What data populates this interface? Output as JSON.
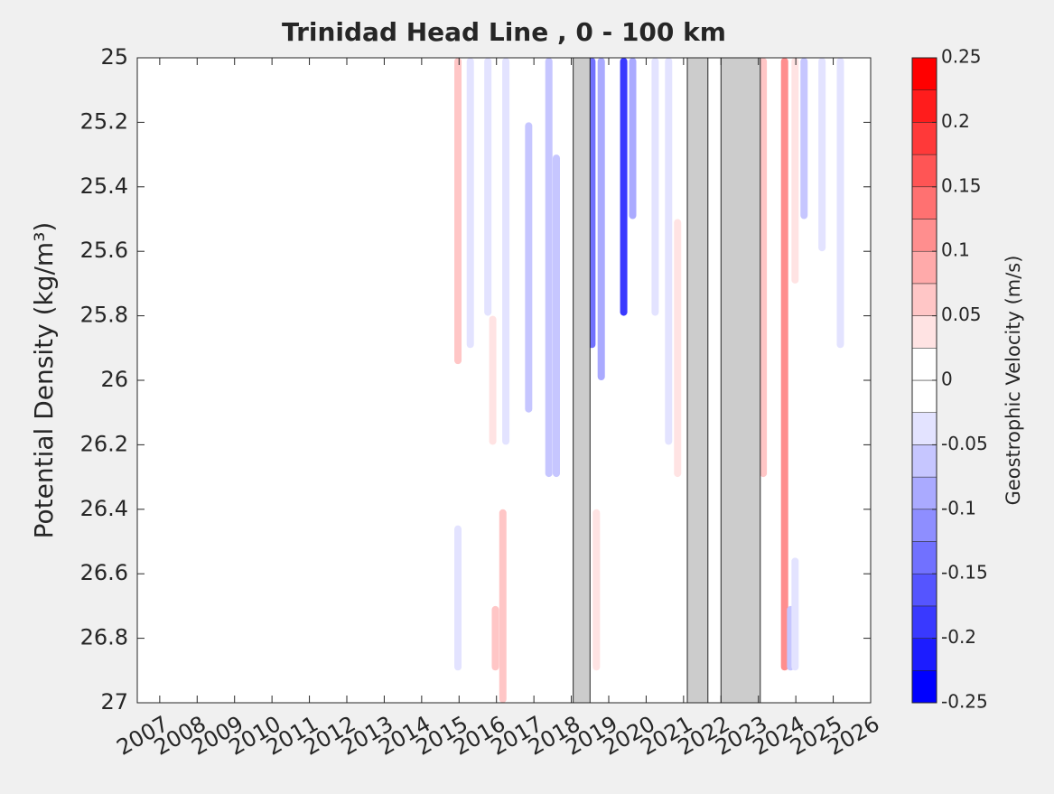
{
  "chart_data": {
    "type": "contour",
    "title": "Trinidad Head Line , 0 - 100 km",
    "y_label": "Potential Density (kg/m³)",
    "colorbar_label": "Geostrophic Velocity (m/s)",
    "xlim": [
      2006.4,
      2026
    ],
    "ylim": [
      27,
      25
    ],
    "y_reversed": true,
    "xticks": [
      2007,
      2008,
      2009,
      2010,
      2011,
      2012,
      2013,
      2014,
      2015,
      2016,
      2017,
      2018,
      2019,
      2020,
      2021,
      2022,
      2023,
      2024,
      2025,
      2026
    ],
    "yticks": [
      25,
      {
        "value": 25.2,
        "label": "25.2"
      },
      {
        "value": 25.4,
        "label": "25.4"
      },
      {
        "value": 25.6,
        "label": "25.6"
      },
      {
        "value": 25.8,
        "label": "25.8"
      },
      26,
      {
        "value": 26.2,
        "label": "26.2"
      },
      {
        "value": 26.4,
        "label": "26.4"
      },
      {
        "value": 26.6,
        "label": "26.6"
      },
      {
        "value": 26.8,
        "label": "26.8"
      },
      27
    ],
    "clim": [
      -0.25,
      0.25
    ],
    "cticks": [
      0.25,
      0.2,
      0.15,
      0.1,
      0.05,
      0,
      -0.05,
      -0.1,
      -0.15,
      -0.2,
      -0.25
    ],
    "clevel_step": 0.025,
    "gaps": [
      [
        2018.05,
        2018.5
      ],
      [
        2021.1,
        2021.65
      ],
      [
        2022.0,
        2023.05
      ]
    ],
    "features": [
      {
        "x": 2014.97,
        "y": [
          25,
          25.95
        ],
        "value": 0.05
      },
      {
        "x": 2015.3,
        "y": [
          25,
          25.9
        ],
        "value": -0.05
      },
      {
        "x": 2015.77,
        "y": [
          25,
          25.8
        ],
        "value": -0.05
      },
      {
        "x": 2015.9,
        "y": [
          25.8,
          26.2
        ],
        "value": 0.04
      },
      {
        "x": 2016.25,
        "y": [
          25,
          26.2
        ],
        "value": -0.05
      },
      {
        "x": 2016.86,
        "y": [
          25.2,
          26.1
        ],
        "value": -0.075
      },
      {
        "x": 2017.4,
        "y": [
          25,
          26.3
        ],
        "value": -0.075
      },
      {
        "x": 2017.6,
        "y": [
          25.3,
          26.3
        ],
        "value": -0.06
      },
      {
        "x": 2018.55,
        "y": [
          25,
          25.9
        ],
        "value": -0.15
      },
      {
        "x": 2018.8,
        "y": [
          25,
          26
        ],
        "value": -0.1
      },
      {
        "x": 2019.4,
        "y": [
          25,
          25.8
        ],
        "value": -0.18
      },
      {
        "x": 2019.64,
        "y": [
          25,
          25.5
        ],
        "value": -0.1
      },
      {
        "x": 2020.24,
        "y": [
          25,
          25.8
        ],
        "value": -0.05
      },
      {
        "x": 2018.67,
        "y": [
          26.4,
          26.9
        ],
        "value": 0.04
      },
      {
        "x": 2020.6,
        "y": [
          25,
          26.2
        ],
        "value": -0.04
      },
      {
        "x": 2020.84,
        "y": [
          25.5,
          26.3
        ],
        "value": 0.04
      },
      {
        "x": 2023.13,
        "y": [
          25,
          26.3
        ],
        "value": 0.06
      },
      {
        "x": 2023.7,
        "y": [
          25,
          26.9
        ],
        "value": 0.1
      },
      {
        "x": 2023.98,
        "y": [
          25,
          25.7
        ],
        "value": 0.04
      },
      {
        "x": 2024.22,
        "y": [
          25,
          25.5
        ],
        "value": -0.06
      },
      {
        "x": 2024.7,
        "y": [
          25,
          25.6
        ],
        "value": -0.05
      },
      {
        "x": 2025.19,
        "y": [
          25,
          25.9
        ],
        "value": -0.04
      },
      {
        "x": 2014.97,
        "y": [
          26.45,
          26.9
        ],
        "value": -0.04
      },
      {
        "x": 2015.97,
        "y": [
          26.7,
          26.9
        ],
        "value": 0.06
      },
      {
        "x": 2016.17,
        "y": [
          26.4,
          27
        ],
        "value": 0.05
      },
      {
        "x": 2023.86,
        "y": [
          26.7,
          26.9
        ],
        "value": -0.06
      },
      {
        "x": 2023.98,
        "y": [
          26.55,
          26.9
        ],
        "value": -0.05
      }
    ]
  }
}
